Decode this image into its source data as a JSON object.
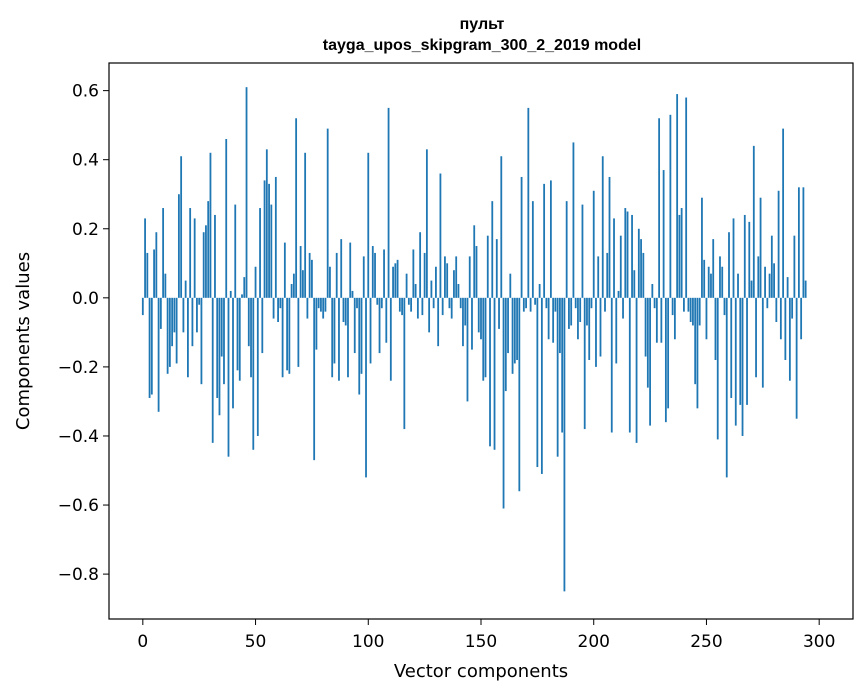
{
  "chart_data": {
    "type": "bar",
    "title_line1": "пульт",
    "title_line2": "tayga_upos_skipgram_300_2_2019 model",
    "xlabel": "Vector components",
    "ylabel": "Components values",
    "xlim": [
      -15,
      315
    ],
    "ylim": [
      -0.93,
      0.68
    ],
    "xticks": [
      0,
      50,
      100,
      150,
      200,
      250,
      300
    ],
    "yticks": [
      -0.8,
      -0.6,
      -0.4,
      -0.2,
      0.0,
      0.2,
      0.4,
      0.6
    ],
    "ytick_labels": [
      "−0.8",
      "−0.6",
      "−0.4",
      "−0.2",
      "0.0",
      "0.2",
      "0.4",
      "0.6"
    ],
    "bar_color": "#1f77b4",
    "values": [
      -0.05,
      0.23,
      0.13,
      -0.29,
      -0.28,
      0.14,
      0.19,
      -0.33,
      -0.09,
      0.26,
      0.07,
      -0.22,
      -0.2,
      -0.14,
      -0.1,
      -0.19,
      0.3,
      0.41,
      -0.1,
      0.05,
      -0.23,
      0.26,
      -0.14,
      0.23,
      -0.1,
      -0.02,
      -0.25,
      0.19,
      0.21,
      0.28,
      0.42,
      -0.42,
      0.24,
      -0.29,
      -0.34,
      -0.17,
      -0.25,
      0.46,
      -0.46,
      0.02,
      -0.32,
      0.27,
      -0.21,
      -0.24,
      0.01,
      0.06,
      0.61,
      -0.14,
      -0.23,
      -0.44,
      0.09,
      -0.4,
      0.26,
      -0.16,
      0.34,
      0.43,
      0.33,
      0.27,
      -0.06,
      0.35,
      -0.07,
      -0.03,
      -0.23,
      0.16,
      -0.21,
      -0.22,
      0.04,
      0.07,
      0.52,
      -0.2,
      0.15,
      0.08,
      0.42,
      -0.06,
      0.13,
      0.11,
      -0.47,
      -0.15,
      -0.03,
      -0.04,
      -0.06,
      -0.04,
      0.49,
      0.09,
      -0.23,
      -0.19,
      0.13,
      -0.24,
      0.17,
      -0.07,
      -0.08,
      -0.23,
      0.16,
      0.02,
      -0.16,
      -0.03,
      -0.28,
      -0.22,
      0.12,
      -0.52,
      0.42,
      -0.19,
      0.15,
      0.13,
      -0.02,
      -0.16,
      -0.03,
      0.14,
      -0.13,
      0.55,
      -0.24,
      0.09,
      0.1,
      0.11,
      -0.04,
      -0.05,
      -0.38,
      0.07,
      -0.02,
      -0.04,
      0.14,
      0.04,
      -0.06,
      0.19,
      -0.05,
      0.13,
      0.43,
      -0.1,
      0.05,
      -0.03,
      0.09,
      -0.14,
      0.36,
      -0.05,
      0.12,
      0.1,
      -0.03,
      -0.06,
      0.08,
      0.12,
      0.04,
      -0.03,
      -0.14,
      -0.08,
      -0.3,
      0.12,
      -0.15,
      0.21,
      0.15,
      -0.1,
      -0.12,
      -0.24,
      -0.23,
      0.18,
      -0.43,
      0.28,
      -0.44,
      0.17,
      -0.09,
      0.41,
      -0.61,
      -0.27,
      -0.16,
      0.07,
      -0.22,
      -0.19,
      -0.18,
      -0.56,
      0.35,
      -0.04,
      -0.03,
      0.55,
      -0.04,
      0.28,
      -0.02,
      -0.49,
      0.04,
      -0.51,
      0.33,
      -0.03,
      -0.12,
      0.34,
      -0.13,
      -0.04,
      -0.46,
      -0.16,
      -0.39,
      -0.85,
      0.28,
      -0.09,
      -0.08,
      0.45,
      -0.03,
      -0.12,
      -0.07,
      0.27,
      -0.38,
      -0.08,
      -0.18,
      -0.03,
      0.31,
      -0.2,
      0.12,
      -0.17,
      0.41,
      -0.04,
      0.13,
      0.35,
      -0.39,
      0.23,
      -0.19,
      0.02,
      0.18,
      -0.06,
      0.26,
      0.25,
      -0.39,
      0.24,
      0.08,
      -0.42,
      0.2,
      0.17,
      0.13,
      -0.17,
      -0.26,
      -0.37,
      0.04,
      -0.03,
      -0.13,
      0.52,
      -0.13,
      0.37,
      -0.36,
      -0.32,
      0.53,
      -0.05,
      -0.12,
      0.59,
      0.24,
      0.26,
      -0.04,
      0.58,
      -0.04,
      -0.07,
      -0.08,
      -0.25,
      -0.32,
      -0.08,
      0.29,
      0.11,
      -0.12,
      0.09,
      0.07,
      0.17,
      -0.18,
      -0.41,
      0.12,
      0.09,
      -0.05,
      -0.52,
      0.19,
      -0.29,
      0.23,
      -0.37,
      0.07,
      -0.31,
      -0.4,
      0.24,
      -0.31,
      0.22,
      0.05,
      0.44,
      -0.23,
      0.12,
      0.29,
      -0.26,
      0.09,
      -0.03,
      0.07,
      0.18,
      0.1,
      -0.07,
      0.31,
      -0.12,
      0.49,
      -0.18,
      0.06,
      -0.24,
      -0.06,
      0.18,
      -0.35,
      0.32,
      -0.12,
      0.32,
      0.05
    ]
  }
}
